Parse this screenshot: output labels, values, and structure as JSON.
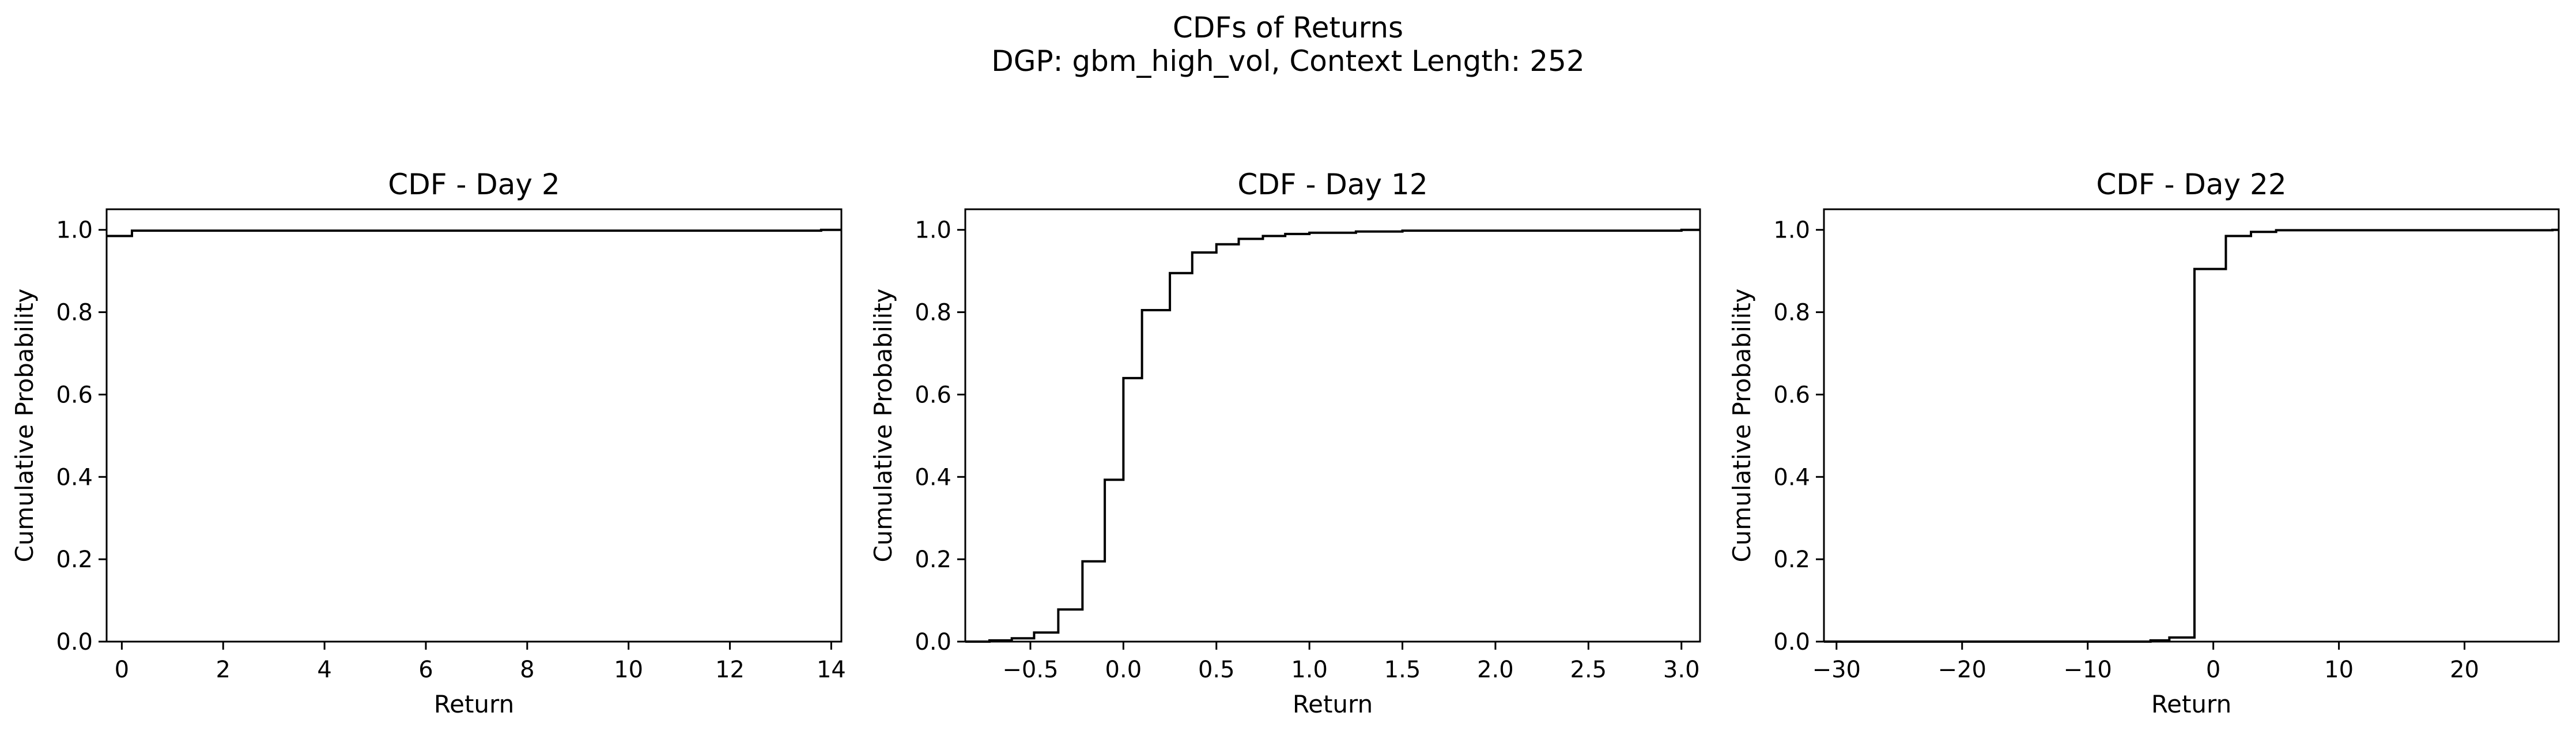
{
  "figure": {
    "title_line1": "CDFs of Returns",
    "title_line2": "DGP: gbm_high_vol, Context Length: 252"
  },
  "chart_data": [
    {
      "type": "line",
      "subtype": "step-cdf",
      "title": "CDF - Day 2",
      "xlabel": "Return",
      "ylabel": "Cumulative Probability",
      "xlim": [
        -0.3,
        14.2
      ],
      "ylim": [
        0.0,
        1.05
      ],
      "xticks": [
        0,
        2,
        4,
        6,
        8,
        10,
        12,
        14
      ],
      "xtick_labels": [
        "0",
        "2",
        "4",
        "6",
        "8",
        "10",
        "12",
        "14"
      ],
      "yticks": [
        0.0,
        0.2,
        0.4,
        0.6,
        0.8,
        1.0
      ],
      "ytick_labels": [
        "0.0",
        "0.2",
        "0.4",
        "0.6",
        "0.8",
        "1.0"
      ],
      "grid": false,
      "color": "#000000",
      "series": [
        {
          "x": [
            -0.3,
            0.2,
            13.8,
            14.2
          ],
          "y": [
            0.985,
            0.998,
            1.0,
            1.0
          ]
        }
      ]
    },
    {
      "type": "line",
      "subtype": "step-cdf",
      "title": "CDF - Day 12",
      "xlabel": "Return",
      "ylabel": "Cumulative Probability",
      "xlim": [
        -0.85,
        3.1
      ],
      "ylim": [
        0.0,
        1.05
      ],
      "xticks": [
        -0.5,
        0.0,
        0.5,
        1.0,
        1.5,
        2.0,
        2.5,
        3.0
      ],
      "xtick_labels": [
        "−0.5",
        "0.0",
        "0.5",
        "1.0",
        "1.5",
        "2.0",
        "2.5",
        "3.0"
      ],
      "yticks": [
        0.0,
        0.2,
        0.4,
        0.6,
        0.8,
        1.0
      ],
      "ytick_labels": [
        "0.0",
        "0.2",
        "0.4",
        "0.6",
        "0.8",
        "1.0"
      ],
      "grid": false,
      "color": "#000000",
      "series": [
        {
          "x": [
            -0.85,
            -0.72,
            -0.6,
            -0.48,
            -0.35,
            -0.22,
            -0.1,
            0.0,
            0.1,
            0.25,
            0.37,
            0.5,
            0.62,
            0.75,
            0.87,
            1.0,
            1.25,
            1.5,
            3.0,
            3.1
          ],
          "y": [
            0.0,
            0.003,
            0.008,
            0.022,
            0.078,
            0.195,
            0.393,
            0.64,
            0.805,
            0.895,
            0.945,
            0.965,
            0.978,
            0.985,
            0.99,
            0.993,
            0.996,
            0.998,
            1.0,
            1.0
          ]
        }
      ]
    },
    {
      "type": "line",
      "subtype": "step-cdf",
      "title": "CDF - Day 22",
      "xlabel": "Return",
      "ylabel": "Cumulative Probability",
      "xlim": [
        -31,
        27.5
      ],
      "ylim": [
        0.0,
        1.05
      ],
      "xticks": [
        -30,
        -20,
        -10,
        0,
        10,
        20
      ],
      "xtick_labels": [
        "−30",
        "−20",
        "−10",
        "0",
        "10",
        "20"
      ],
      "yticks": [
        0.0,
        0.2,
        0.4,
        0.6,
        0.8,
        1.0
      ],
      "ytick_labels": [
        "0.0",
        "0.2",
        "0.4",
        "0.6",
        "0.8",
        "1.0"
      ],
      "grid": false,
      "color": "#000000",
      "series": [
        {
          "x": [
            -31,
            -5,
            -3.5,
            -1.5,
            1.0,
            3.0,
            5.0,
            27,
            27.5
          ],
          "y": [
            0.0,
            0.003,
            0.01,
            0.905,
            0.985,
            0.995,
            0.999,
            1.0,
            1.0
          ]
        }
      ]
    }
  ]
}
